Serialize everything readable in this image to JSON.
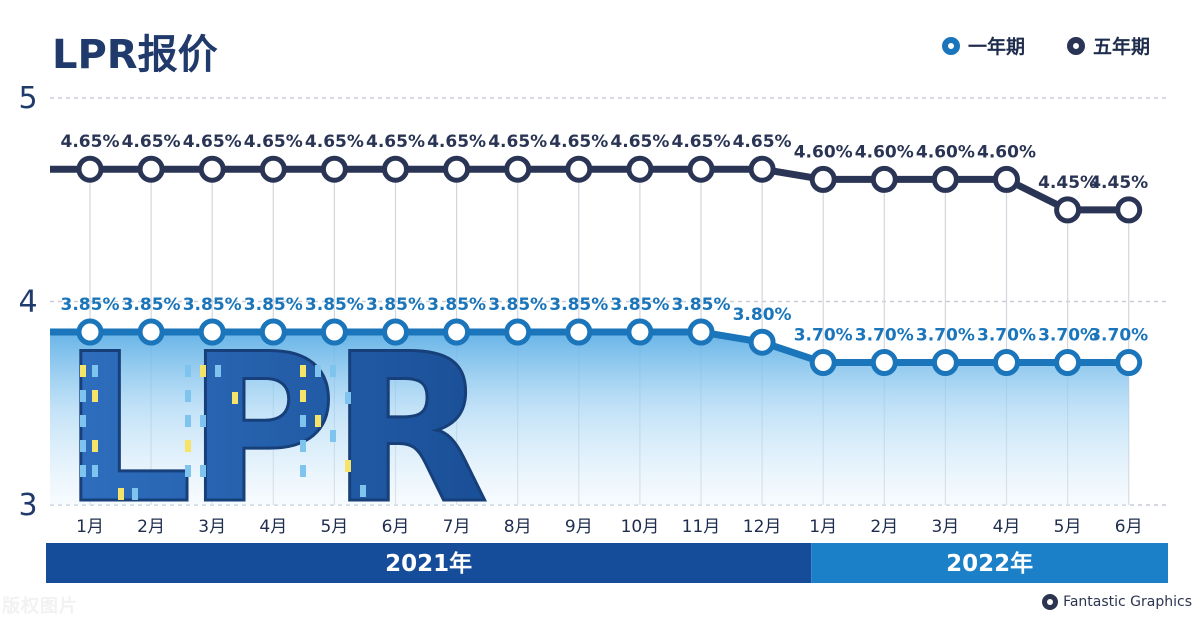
{
  "title": "LPR报价",
  "legend": [
    {
      "label": "一年期",
      "color": "#1a75bb"
    },
    {
      "label": "五年期",
      "color": "#2a3454"
    }
  ],
  "watermark": "版权图片",
  "credit": "Fantastic Graphics",
  "decor_text": "LPR",
  "chart_data": {
    "type": "line",
    "title": "LPR报价",
    "categories": [
      "1月",
      "2月",
      "3月",
      "4月",
      "5月",
      "6月",
      "7月",
      "8月",
      "9月",
      "10月",
      "11月",
      "12月",
      "1月",
      "2月",
      "3月",
      "4月",
      "5月",
      "6月"
    ],
    "year_groups": [
      {
        "label": "2021年",
        "count": 12
      },
      {
        "label": "2022年",
        "count": 6
      }
    ],
    "ylim": [
      3,
      5
    ],
    "yticks": [
      3,
      4,
      5
    ],
    "grid": true,
    "legend_position": "top-right",
    "series": [
      {
        "name": "一年期",
        "color": "#1a75bb",
        "values": [
          3.85,
          3.85,
          3.85,
          3.85,
          3.85,
          3.85,
          3.85,
          3.85,
          3.85,
          3.85,
          3.85,
          3.8,
          3.7,
          3.7,
          3.7,
          3.7,
          3.7,
          3.7
        ],
        "labels": [
          "3.85%",
          "3.85%",
          "3.85%",
          "3.85%",
          "3.85%",
          "3.85%",
          "3.85%",
          "3.85%",
          "3.85%",
          "3.85%",
          "3.85%",
          "3.80%",
          "3.70%",
          "3.70%",
          "3.70%",
          "3.70%",
          "3.70%",
          "3.70%"
        ]
      },
      {
        "name": "五年期",
        "color": "#2a3454",
        "values": [
          4.65,
          4.65,
          4.65,
          4.65,
          4.65,
          4.65,
          4.65,
          4.65,
          4.65,
          4.65,
          4.65,
          4.65,
          4.6,
          4.6,
          4.6,
          4.6,
          4.45,
          4.45
        ],
        "labels": [
          "4.65%",
          "4.65%",
          "4.65%",
          "4.65%",
          "4.65%",
          "4.65%",
          "4.65%",
          "4.65%",
          "4.65%",
          "4.65%",
          "4.65%",
          "4.65%",
          "4.60%",
          "4.60%",
          "4.60%",
          "4.60%",
          "4.45%",
          "4.45%"
        ]
      }
    ]
  }
}
